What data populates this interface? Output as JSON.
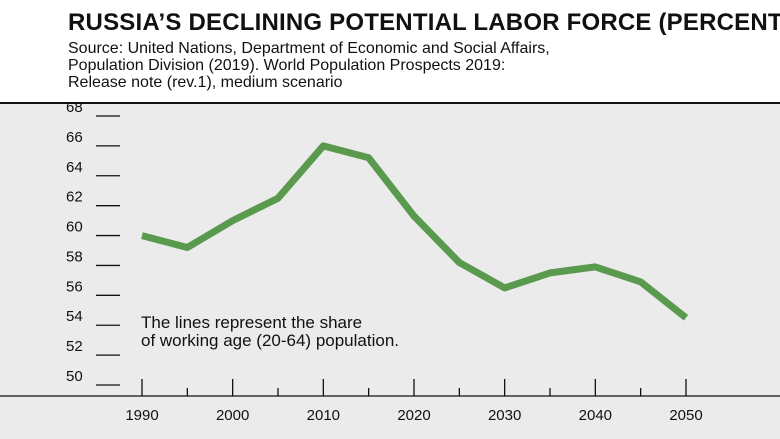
{
  "title": "RUSSIA’S DECLINING POTENTIAL LABOR FORCE (PERCENT)",
  "source_lines": [
    "Source: United Nations, Department of Economic and Social Affairs,",
    "Population Division (2019). World Population Prospects 2019:",
    "Release note (rev.1), medium scenario"
  ],
  "annotation_lines": [
    "The lines represent the share",
    "of working age (20-64) population."
  ],
  "colors": {
    "line": "#5a9a4e",
    "plot_background": "#ebebeb",
    "rule": "#111111"
  },
  "chart_data": {
    "type": "line",
    "title": "RUSSIA’S DECLINING POTENTIAL LABOR FORCE (PERCENT)",
    "xlabel": "",
    "ylabel": "",
    "x": [
      1990,
      1995,
      2000,
      2005,
      2010,
      2015,
      2020,
      2025,
      2030,
      2035,
      2040,
      2045,
      2050
    ],
    "series": [
      {
        "values": [
          60.0,
          59.2,
          61.0,
          62.5,
          66.0,
          65.2,
          61.3,
          58.2,
          56.5,
          57.5,
          57.9,
          56.9,
          54.5
        ]
      }
    ],
    "xlim": [
      1990,
      2050
    ],
    "ylim": [
      50,
      68
    ],
    "x_ticks": [
      1990,
      2000,
      2010,
      2020,
      2030,
      2040,
      2050
    ],
    "x_minor_ticks": [
      1995,
      2005,
      2015,
      2025,
      2035,
      2045
    ],
    "y_ticks": [
      50,
      52,
      54,
      56,
      58,
      60,
      62,
      64,
      66,
      68
    ],
    "grid": false,
    "legend": "none"
  }
}
